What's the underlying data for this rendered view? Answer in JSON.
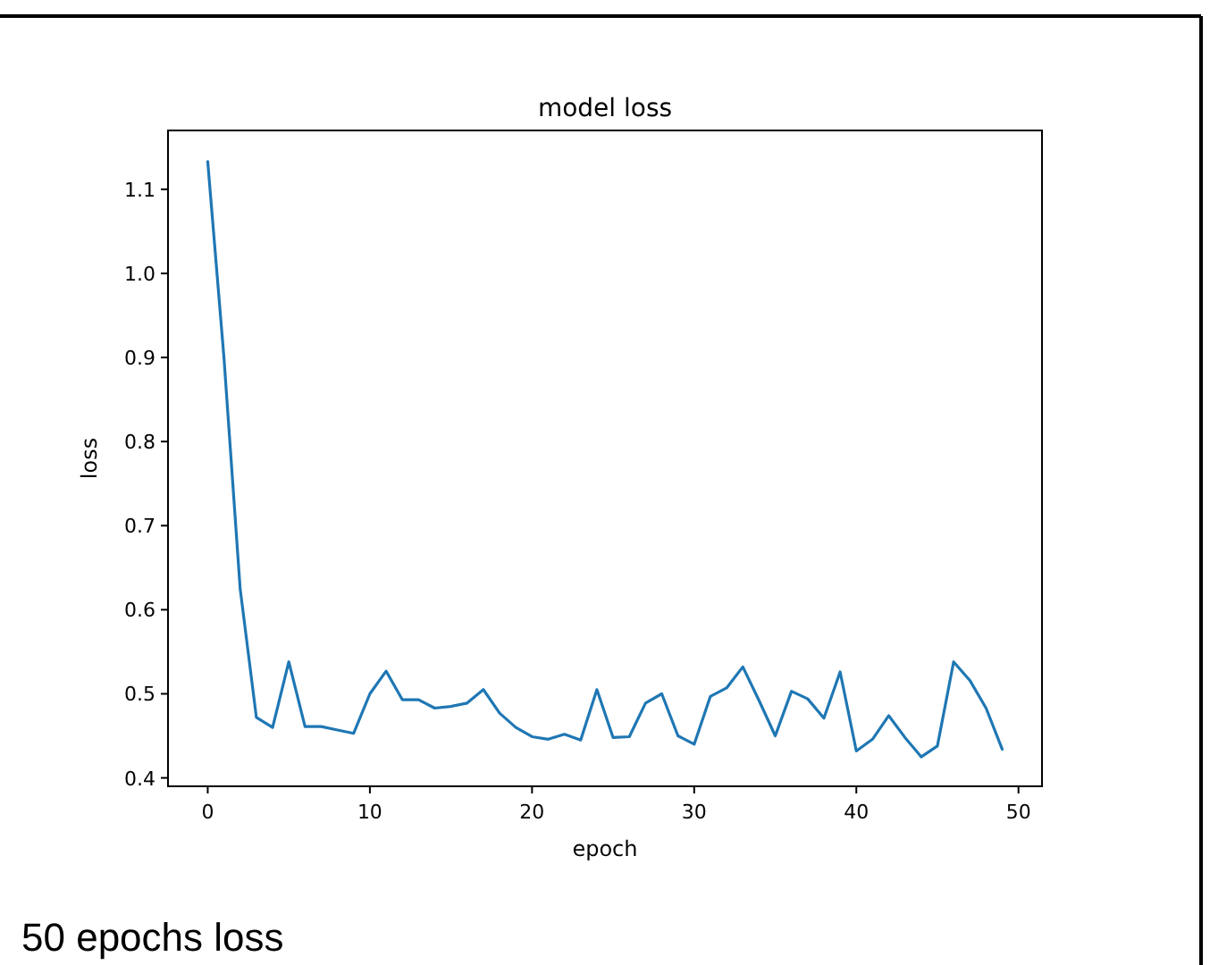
{
  "chart_data": {
    "type": "line",
    "title": "model loss",
    "xlabel": "epoch",
    "ylabel": "loss",
    "x": [
      0,
      1,
      2,
      3,
      4,
      5,
      6,
      7,
      8,
      9,
      10,
      11,
      12,
      13,
      14,
      15,
      16,
      17,
      18,
      19,
      20,
      21,
      22,
      23,
      24,
      25,
      26,
      27,
      28,
      29,
      30,
      31,
      32,
      33,
      34,
      35,
      36,
      37,
      38,
      39,
      40,
      41,
      42,
      43,
      44,
      45,
      46,
      47,
      48,
      49
    ],
    "series": [
      {
        "color": "#1f77b4",
        "values": [
          1.133,
          0.9,
          0.625,
          0.472,
          0.46,
          0.538,
          0.461,
          0.461,
          0.457,
          0.453,
          0.5,
          0.527,
          0.493,
          0.493,
          0.483,
          0.485,
          0.489,
          0.505,
          0.477,
          0.46,
          0.449,
          0.446,
          0.452,
          0.445,
          0.505,
          0.448,
          0.449,
          0.489,
          0.5,
          0.45,
          0.44,
          0.497,
          0.507,
          0.532,
          0.492,
          0.45,
          0.503,
          0.494,
          0.471,
          0.526,
          0.432,
          0.446,
          0.474,
          0.448,
          0.425,
          0.438,
          0.538,
          0.516,
          0.483,
          0.434
        ]
      }
    ],
    "xlim": [
      -2.45,
      51.45
    ],
    "xticks": [
      0,
      10,
      20,
      30,
      40,
      50
    ],
    "ylim": [
      0.39,
      1.17
    ],
    "yticks": [
      0.4,
      0.5,
      0.6,
      0.7,
      0.8,
      0.9,
      {
        "value": 1,
        "label": "1.0"
      },
      1.1
    ],
    "annotations": [
      "50 epochs loss"
    ]
  }
}
